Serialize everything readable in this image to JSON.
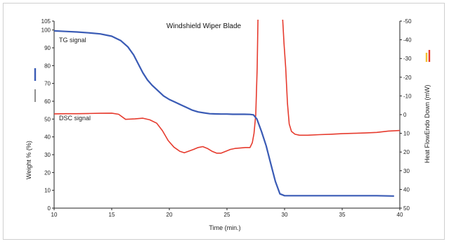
{
  "chart_data": {
    "type": "line",
    "title": "Windshield Wiper Blade",
    "xlabel": "Time (min.)",
    "ylabel_left": "Weight % (%)",
    "ylabel_right": "Heat FlowEndo Down (mW)",
    "xlim": [
      10,
      40
    ],
    "ylim_left": [
      0,
      105
    ],
    "ylim_right": [
      50,
      -50
    ],
    "x_ticks": [
      10,
      15,
      20,
      25,
      30,
      35,
      40
    ],
    "y_left_ticks": [
      0,
      10,
      20,
      30,
      40,
      50,
      60,
      70,
      80,
      90,
      100,
      105
    ],
    "y_right_ticks": [
      50,
      40,
      30,
      20,
      10,
      0,
      -10,
      -20,
      -30,
      -40,
      -50
    ],
    "grid": false,
    "legend_marker_left_color": "#3a5bb5",
    "legend_marker_right_colors": [
      "#e63b2e",
      "#f2c230"
    ],
    "series": [
      {
        "name": "TG signal",
        "axis": "left",
        "color": "#3a5bb5",
        "x": [
          10,
          11,
          12,
          13,
          14,
          15,
          15.8,
          16.4,
          16.9,
          17.3,
          17.7,
          18.1,
          18.5,
          19,
          19.5,
          20,
          20.5,
          21,
          21.5,
          22,
          22.5,
          23,
          23.5,
          24,
          24.5,
          25,
          25.5,
          26,
          26.5,
          27,
          27.3,
          27.6,
          28,
          28.4,
          28.8,
          29.2,
          29.6,
          30,
          32,
          34,
          36,
          38,
          39.5
        ],
        "y": [
          99.5,
          99.2,
          98.9,
          98.4,
          97.8,
          96.5,
          94,
          90.5,
          86,
          81,
          76,
          72,
          69,
          66,
          63,
          61,
          59.5,
          58,
          56.5,
          55,
          54,
          53.5,
          53,
          52.9,
          52.8,
          52.8,
          52.7,
          52.7,
          52.7,
          52.6,
          52.4,
          50,
          43,
          35,
          25,
          15,
          8,
          7,
          7,
          7,
          7,
          7,
          6.8
        ]
      },
      {
        "name": "DSC signal",
        "axis": "right",
        "color": "#e63b2e",
        "x": [
          10,
          11,
          12,
          13,
          14,
          15,
          15.6,
          16.2,
          17,
          17.7,
          18.3,
          18.9,
          19.4,
          19.9,
          20.4,
          20.9,
          21.3,
          21.7,
          22.1,
          22.5,
          22.9,
          23.3,
          23.7,
          24.1,
          24.5,
          24.9,
          25.3,
          25.7,
          26.1,
          26.6,
          27,
          27.2,
          27.35,
          27.5,
          27.62,
          27.7,
          29.8,
          29.95,
          30.1,
          30.25,
          30.4,
          30.6,
          30.9,
          31.3,
          32,
          33,
          34,
          35,
          36,
          37,
          38,
          39,
          40
        ],
        "y": [
          -0.4,
          -0.5,
          -0.5,
          -0.6,
          -0.7,
          -0.8,
          -0.2,
          2.5,
          2.3,
          1.9,
          2.8,
          4.6,
          8.6,
          13.9,
          17.4,
          19.6,
          20.4,
          19.5,
          18.6,
          17.6,
          17.1,
          18.1,
          19.6,
          20.6,
          20.6,
          19.6,
          18.6,
          18.1,
          17.9,
          17.6,
          17.6,
          15,
          10,
          0,
          -25,
          -55,
          -55,
          -38,
          -25,
          -6,
          5,
          9,
          10.5,
          11,
          11,
          10.7,
          10.5,
          10.2,
          10,
          9.8,
          9.5,
          8.8,
          8.5
        ]
      }
    ]
  }
}
